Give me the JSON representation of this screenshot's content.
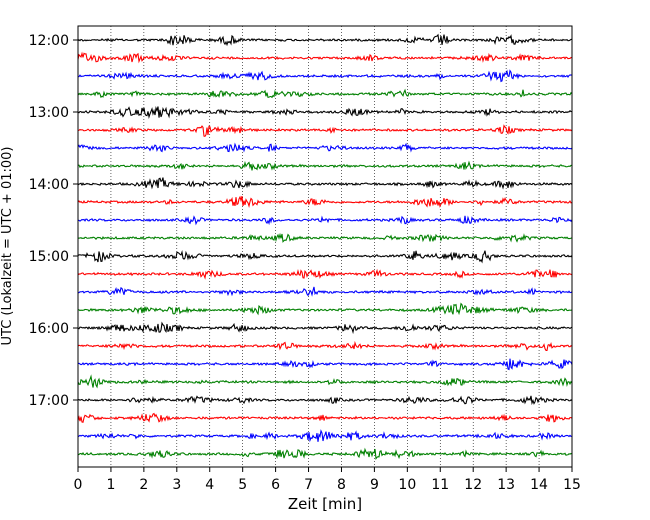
{
  "chart_data": {
    "type": "line",
    "subtype": "seismogram-helicorder",
    "xlabel": "Zeit  [min]",
    "ylabel": "UTC (Lokalzeit = UTC + 01:00)",
    "xlim": [
      0,
      15
    ],
    "x_ticks": [
      "0",
      "1",
      "2",
      "3",
      "4",
      "5",
      "6",
      "7",
      "8",
      "9",
      "10",
      "11",
      "12",
      "13",
      "14",
      "15"
    ],
    "y_ticks": [
      "12:00",
      "13:00",
      "14:00",
      "15:00",
      "16:00",
      "17:00"
    ],
    "grid": "vertical dotted lines at each minute",
    "trace_colors": [
      "#000000",
      "#ff0000",
      "#0000ff",
      "#008000"
    ],
    "trace_count": 24,
    "trace_interval_minutes": 15,
    "first_trace_start": "12:00",
    "last_trace_start": "17:45"
  }
}
